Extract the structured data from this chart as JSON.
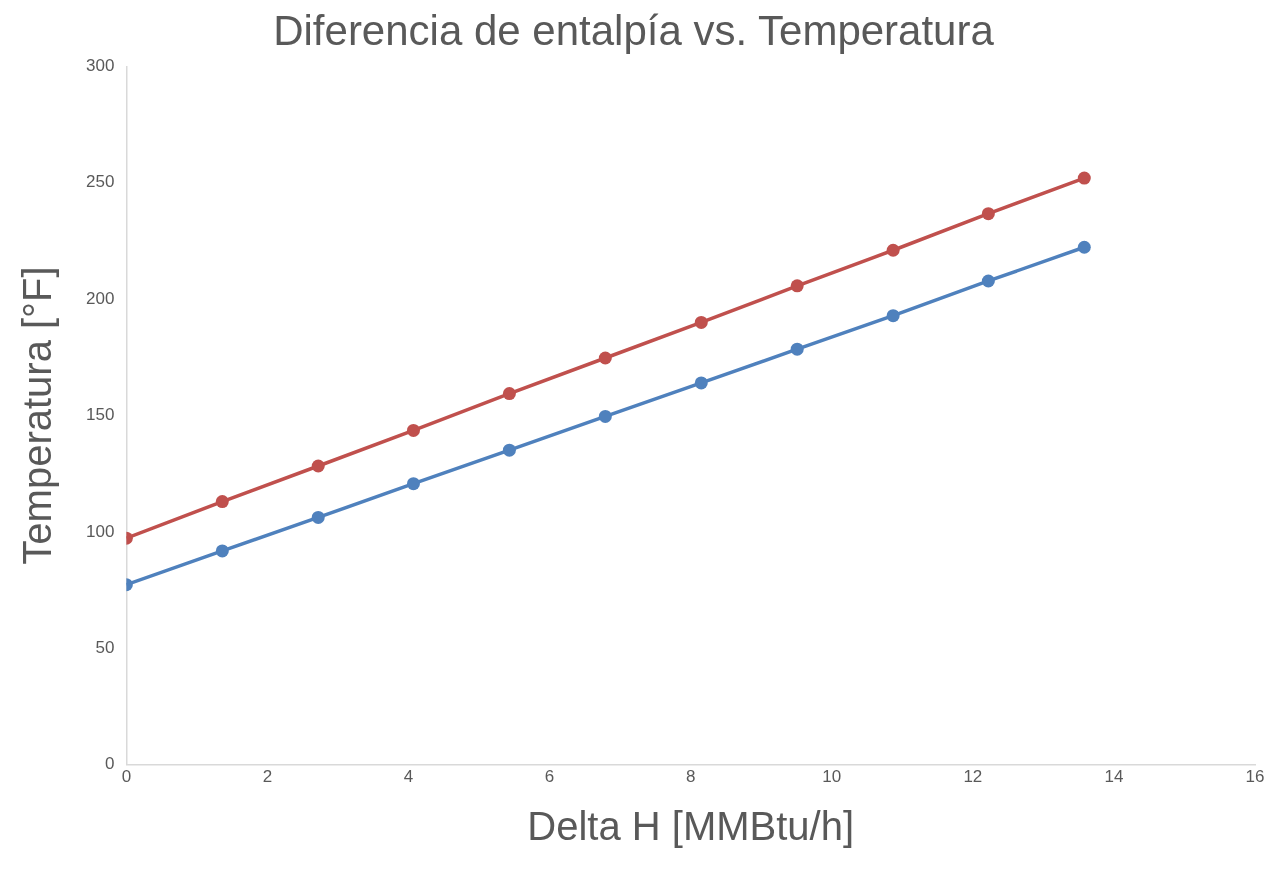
{
  "chart_data": {
    "type": "line",
    "title": "Diferencia de entalpía vs. Temperatura",
    "xlabel": "Delta H [MMBtu/h]",
    "ylabel": "Temperatura [°F]",
    "x": [
      0,
      1.36,
      2.72,
      4.07,
      5.43,
      6.79,
      8.15,
      9.51,
      10.87,
      12.22,
      13.58
    ],
    "series": [
      {
        "color": "#c0504d",
        "values": [
          97.3,
          113.0,
          128.3,
          143.6,
          159.4,
          174.7,
          190.0,
          205.7,
          221.0,
          236.7,
          252.0
        ]
      },
      {
        "color": "#4f81bd",
        "values": [
          77.3,
          91.8,
          106.2,
          120.7,
          135.1,
          149.6,
          164.0,
          178.5,
          192.9,
          207.8,
          222.3
        ]
      }
    ],
    "xlim": [
      0,
      16
    ],
    "xticks": [
      0,
      2,
      4,
      6,
      8,
      10,
      12,
      14,
      16
    ],
    "ylim": [
      0,
      300
    ],
    "yticks": [
      0,
      50,
      100,
      150,
      200,
      250,
      300
    ],
    "marker": "circle",
    "line_style": "solid"
  }
}
